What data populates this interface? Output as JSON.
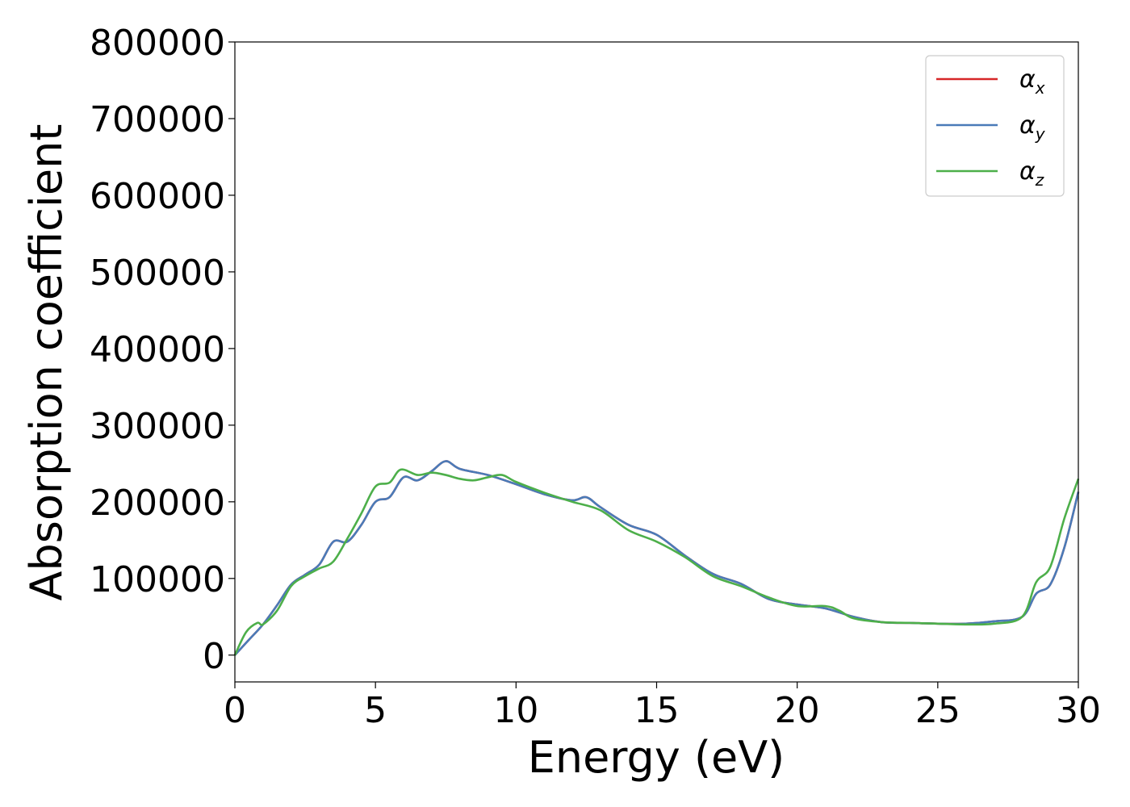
{
  "chart_data": {
    "type": "line",
    "xlabel": "Energy (eV)",
    "ylabel": "Absorption coefficient",
    "xlim": [
      0,
      30
    ],
    "ylim": [
      -35000,
      800000
    ],
    "xticks": [
      "0",
      "5",
      "10",
      "15",
      "20",
      "25",
      "30"
    ],
    "yticks": [
      "0",
      "100000",
      "200000",
      "300000",
      "400000",
      "500000",
      "600000",
      "700000",
      "800000"
    ],
    "grid": false,
    "legend": {
      "position": "top-right",
      "entries": [
        {
          "symbol": "α",
          "sub": "x",
          "color": "#d62728"
        },
        {
          "symbol": "α",
          "sub": "y",
          "color": "#4a7bb8"
        },
        {
          "symbol": "α",
          "sub": "z",
          "color": "#4daf4a"
        }
      ]
    },
    "series": [
      {
        "label": "αx",
        "color": "#d62728",
        "x": [
          0,
          0.5,
          1,
          1.5,
          2,
          2.5,
          3,
          3.5,
          4,
          4.5,
          5,
          5.5,
          6,
          6.5,
          7,
          7.5,
          8,
          9,
          10,
          11,
          12,
          12.5,
          13,
          14,
          15,
          16,
          17,
          18,
          19,
          20,
          21,
          22,
          23,
          24,
          25,
          26,
          27,
          28,
          28.5,
          29,
          29.5,
          30
        ],
        "y": [
          0,
          20000,
          40000,
          65000,
          92000,
          105000,
          118000,
          148000,
          148000,
          170000,
          200000,
          206000,
          232000,
          228000,
          240000,
          253000,
          243000,
          235000,
          223000,
          210000,
          202000,
          206000,
          193000,
          170000,
          157000,
          130000,
          106000,
          93000,
          73000,
          66000,
          61000,
          50000,
          43000,
          42000,
          41000,
          41000,
          44000,
          50000,
          80000,
          92000,
          140000,
          213000
        ]
      },
      {
        "label": "αy",
        "color": "#4a7bb8",
        "x": [
          0,
          0.5,
          1,
          1.5,
          2,
          2.5,
          3,
          3.5,
          4,
          4.5,
          5,
          5.5,
          6,
          6.5,
          7,
          7.5,
          8,
          9,
          10,
          11,
          12,
          12.5,
          13,
          14,
          15,
          16,
          17,
          18,
          19,
          20,
          21,
          22,
          23,
          24,
          25,
          26,
          27,
          28,
          28.5,
          29,
          29.5,
          30
        ],
        "y": [
          0,
          20000,
          40000,
          65000,
          92000,
          105000,
          118000,
          148000,
          148000,
          170000,
          200000,
          206000,
          232000,
          228000,
          240000,
          253000,
          243000,
          235000,
          223000,
          210000,
          202000,
          206000,
          193000,
          170000,
          157000,
          130000,
          106000,
          93000,
          73000,
          66000,
          61000,
          50000,
          43000,
          42000,
          41000,
          41000,
          44000,
          50000,
          80000,
          92000,
          140000,
          213000
        ]
      },
      {
        "label": "αz",
        "color": "#4daf4a",
        "x": [
          0,
          0.4,
          0.8,
          1,
          1.5,
          2,
          2.5,
          3,
          3.5,
          4,
          4.5,
          5,
          5.5,
          5.9,
          6.5,
          7,
          7.5,
          8,
          8.5,
          9,
          9.5,
          10,
          11,
          12,
          13,
          14,
          15,
          16,
          17,
          18,
          19,
          20,
          21,
          21.5,
          22,
          23,
          24,
          25,
          26,
          27,
          28,
          28.5,
          29,
          29.5,
          30
        ],
        "y": [
          0,
          30000,
          42000,
          40000,
          58000,
          90000,
          103000,
          113000,
          122000,
          152000,
          185000,
          220000,
          225000,
          242000,
          235000,
          238000,
          235000,
          230000,
          228000,
          232000,
          235000,
          226000,
          212000,
          200000,
          189000,
          163000,
          148000,
          128000,
          103000,
          90000,
          75000,
          64000,
          64000,
          58000,
          48000,
          43000,
          42000,
          41000,
          40000,
          41000,
          50000,
          95000,
          115000,
          178000,
          230000
        ]
      }
    ]
  }
}
